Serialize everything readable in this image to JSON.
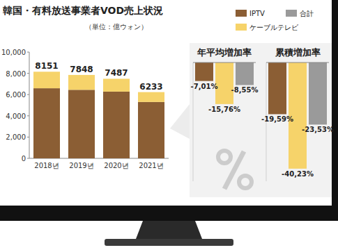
{
  "chart_data": [
    {
      "type": "bar",
      "stacked": true,
      "title": "韓国・有料放送事業者VOD売上状況",
      "subtitle": "（単位：億ウォン）",
      "categories": [
        "2018년",
        "2019년",
        "2020년",
        "2021년"
      ],
      "series": [
        {
          "color": "#8b5e34",
          "values": [
            6595,
            6450,
            6280,
            5303
          ]
        },
        {
          "color": "#f6d36a",
          "values": [
            1556,
            1398,
            1207,
            930
          ]
        }
      ],
      "totals": [
        8151,
        7848,
        7487,
        6233
      ],
      "ylim": [
        0,
        10000
      ],
      "yticks": [
        0,
        {
          "value": 2000,
          "label": "2,000"
        },
        {
          "value": 4000,
          "label": "4,000"
        },
        {
          "value": 6000,
          "label": "6,000"
        },
        {
          "value": 8000,
          "label": "8,000"
        },
        {
          "value": 10000,
          "label": "10,000"
        }
      ],
      "grid": false
    },
    {
      "type": "bar",
      "title": "年平均増加率",
      "legend": "top-right",
      "categories": [
        null
      ],
      "ylim": [
        -45,
        0
      ],
      "tick_labels": false,
      "data_labels": true,
      "series": [
        {
          "name": "IPTV",
          "color": "#8b5e34",
          "values": [
            -7.01
          ],
          "value_labels": [
            "-7,01%"
          ]
        },
        {
          "name": "ケーブルテレビ",
          "color": "#f6d36a",
          "values": [
            -15.76
          ],
          "value_labels": [
            "-15,76%"
          ]
        },
        {
          "name": "合計",
          "color": "#9a9a9a",
          "values": [
            -8.55
          ],
          "value_labels": [
            "-8,55%"
          ]
        }
      ]
    },
    {
      "type": "bar",
      "title": "累積増加率",
      "categories": [
        null
      ],
      "ylim": [
        -45,
        0
      ],
      "tick_labels": false,
      "data_labels": true,
      "series": [
        {
          "color": "#8b5e34",
          "values": [
            -19.59
          ],
          "value_labels": [
            "-19,59%"
          ]
        },
        {
          "color": "#f6d36a",
          "values": [
            -40.23
          ],
          "value_labels": [
            "-40,23%"
          ]
        },
        {
          "color": "#9a9a9a",
          "values": [
            -23.53
          ],
          "value_labels": [
            "-23,53%"
          ]
        }
      ]
    }
  ]
}
